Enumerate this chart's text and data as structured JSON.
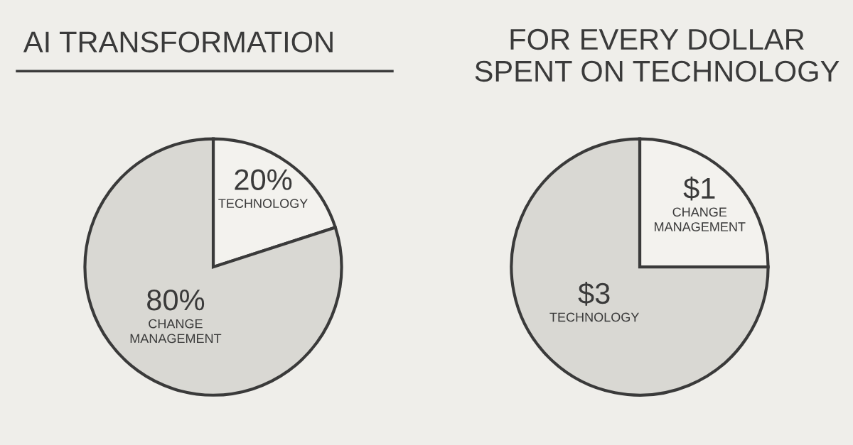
{
  "chart_data": [
    {
      "type": "pie",
      "title": "AI TRANSFORMATION",
      "categories": [
        "TECHNOLOGY",
        "CHANGE MANAGEMENT"
      ],
      "values": [
        20,
        80
      ],
      "value_labels": [
        "20%",
        "80%"
      ],
      "colors": [
        "#f3f2ee",
        "#d9d8d3"
      ]
    },
    {
      "type": "pie",
      "title": "FOR EVERY DOLLAR SPENT ON TECHNOLOGY",
      "categories": [
        "CHANGE MANAGEMENT",
        "TECHNOLOGY"
      ],
      "values": [
        1,
        3
      ],
      "value_labels": [
        "$1",
        "$3"
      ],
      "colors": [
        "#f3f2ee",
        "#d9d8d3"
      ]
    }
  ]
}
